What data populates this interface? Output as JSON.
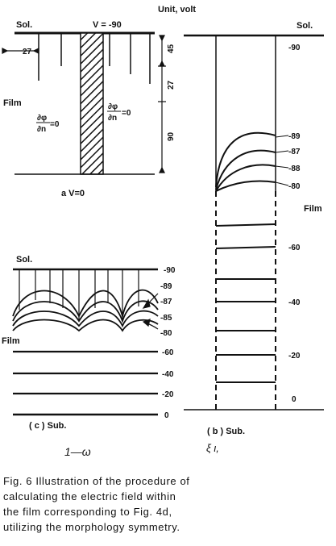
{
  "unit_label": "Unit, volt",
  "panel_a": {
    "sol_label": "Sol.",
    "film_label": "Film",
    "top_potential": "V = -90",
    "bottom_potential": "a   V=0",
    "bc_left_num": "∂φ",
    "bc_left_den": "∂n",
    "bc_left_eq": "=0",
    "bc_right_num": "∂φ",
    "bc_right_den": "∂n",
    "bc_right_eq": "=0",
    "dim_horizontal": "27",
    "dim_top": "45",
    "dim_mid": "27",
    "dim_bottom": "90"
  },
  "panel_b": {
    "sol_label": "Sol.",
    "film_label": "Film",
    "caption": "( b )   Sub.",
    "ticks": [
      "-90",
      "-89",
      "-87",
      "-88",
      "-80",
      "-60",
      "-40",
      "-20",
      "0"
    ]
  },
  "panel_c": {
    "sol_label": "Sol.",
    "film_label": "Film",
    "caption": "( c )   Sub.",
    "ticks": [
      "-90",
      "-89",
      "-87",
      "-85",
      "-80",
      "-60",
      "-40",
      "-20",
      "0"
    ]
  },
  "handwritten_c": "1—ω",
  "handwritten_b": "ξ ι,",
  "caption": {
    "line1": "Fig. 6   Illustration of the procedure of",
    "line2": "calculating  the electric  field within",
    "line3": "the film  corresponding  to  Fig. 4d,",
    "line4": "utilizing the morphology symmetry."
  }
}
